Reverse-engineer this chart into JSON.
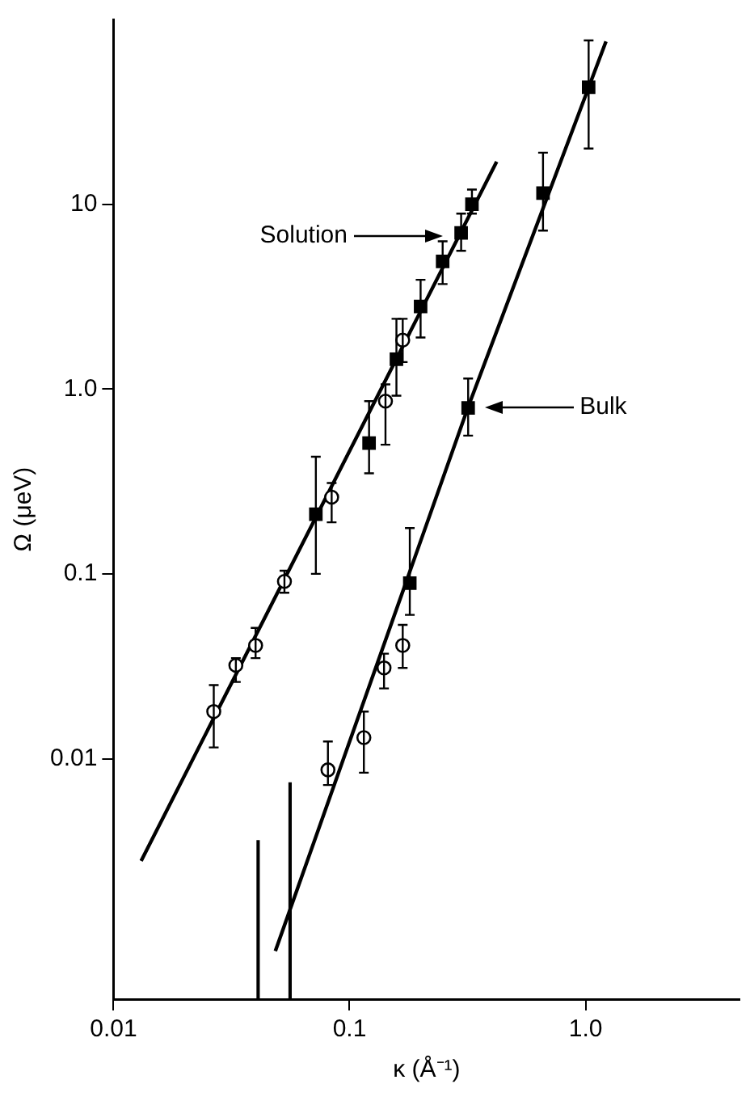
{
  "chart_data": {
    "type": "scatter",
    "xlabel": "κ (Å⁻¹)",
    "ylabel": "Ω (μeV)",
    "log": "xy",
    "grid": false,
    "legend": false,
    "xlim": [
      0.01,
      4.5
    ],
    "xticks": [
      0.01,
      0.1,
      {
        "value": 1,
        "label": "1.0"
      }
    ],
    "ylim": [
      0.0005,
      100
    ],
    "yticks": [
      0.01,
      0.1,
      {
        "value": 1,
        "label": "1.0"
      },
      10
    ],
    "series": [
      {
        "color": "#000000",
        "marker": "square",
        "x": [
          0.33,
          0.297,
          0.248,
          0.2,
          0.158,
          0.121,
          0.072
        ],
        "values": [
          10,
          7.0,
          4.9,
          2.8,
          1.45,
          0.51,
          0.21
        ],
        "errors": [
          [
            8.9,
            12
          ],
          [
            5.6,
            8.9
          ],
          [
            3.7,
            6.3
          ],
          [
            1.9,
            3.9
          ],
          [
            0.92,
            2.4
          ],
          [
            0.35,
            0.86
          ],
          [
            0.1,
            0.43
          ]
        ]
      },
      {
        "color": "#000000",
        "marker": "circle",
        "x": [
          0.168,
          0.142,
          0.084,
          0.053,
          0.04,
          0.033,
          0.0266
        ],
        "values": [
          1.84,
          0.86,
          0.26,
          0.091,
          0.041,
          0.032,
          0.018
        ],
        "errors": [
          [
            1.4,
            2.4
          ],
          [
            0.5,
            1.06
          ],
          [
            0.19,
            0.31
          ],
          [
            0.079,
            0.104
          ],
          [
            0.035,
            0.051
          ],
          [
            0.026,
            0.035
          ],
          [
            0.0115,
            0.025
          ]
        ]
      },
      {
        "color": "#000000",
        "marker": "square",
        "x": [
          1.03,
          0.66,
          0.318,
          0.18
        ],
        "values": [
          43,
          11.5,
          0.79,
          0.089
        ],
        "errors": [
          [
            20,
            77
          ],
          [
            7.2,
            19
          ],
          [
            0.56,
            1.14
          ],
          [
            0.06,
            0.177
          ]
        ]
      },
      {
        "color": "#000000",
        "marker": "circle",
        "x": [
          0.168,
          0.14,
          0.115,
          0.081
        ],
        "values": [
          0.041,
          0.031,
          0.013,
          0.0087
        ],
        "errors": [
          [
            0.031,
            0.053
          ],
          [
            0.024,
            0.037
          ],
          [
            0.0084,
            0.018
          ],
          [
            0.0072,
            0.0124
          ]
        ]
      },
      {
        "type": "bar",
        "color": "#000000",
        "x": [
          0.041,
          0.056
        ],
        "base": [
          0.0005,
          0.0005
        ],
        "values": [
          0.0031,
          0.0069
        ]
      },
      {
        "type": "line",
        "color": "#000000",
        "line_style": "solid",
        "x": [
          0.0131,
          0.29,
          0.42
        ],
        "values": [
          0.0028,
          6.7,
          17
        ]
      },
      {
        "type": "line",
        "color": "#000000",
        "line_style": "solid",
        "x": [
          0.0485,
          0.318,
          1.22
        ],
        "values": [
          0.00091,
          0.8,
          76
        ]
      }
    ],
    "annotations": [
      "Solution",
      "Bulk"
    ]
  }
}
